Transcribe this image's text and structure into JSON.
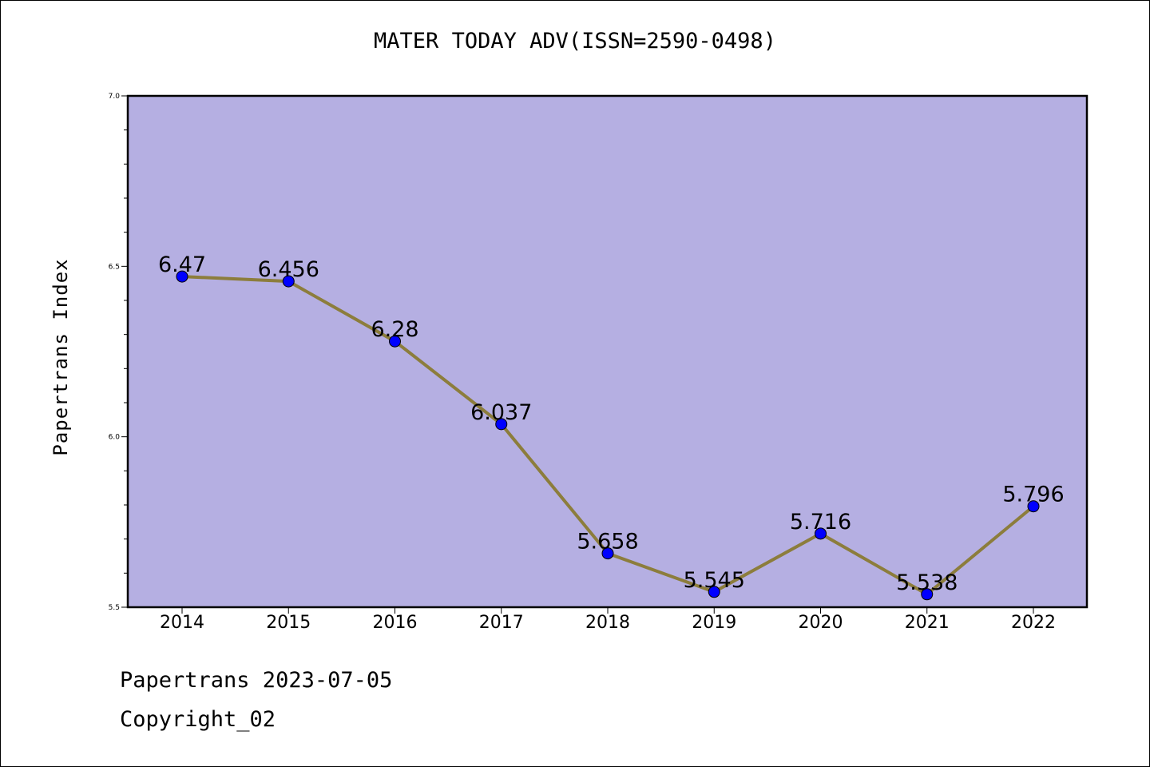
{
  "title": "MATER TODAY ADV(ISSN=2590-0498)",
  "footer": {
    "source": "Papertrans 2023-07-05",
    "copyright": "Copyright_02"
  },
  "colors": {
    "plot_background": "#b5afe2",
    "line": "#8c7d3c",
    "marker": "#0000ff"
  },
  "chart_data": {
    "type": "line",
    "x": [
      "2014",
      "2015",
      "2016",
      "2017",
      "2018",
      "2019",
      "2020",
      "2021",
      "2022"
    ],
    "series": [
      {
        "values": [
          6.47,
          6.456,
          6.28,
          6.037,
          5.658,
          5.545,
          5.716,
          5.538,
          5.796
        ]
      }
    ],
    "data_labels": [
      "6.47",
      "6.456",
      "6.28",
      "6.037",
      "5.658",
      "5.545",
      "5.716",
      "5.538",
      "5.796"
    ],
    "ylabel": "Papertrans Index",
    "xlabel": "",
    "ylim": [
      5.5,
      7.0
    ],
    "yticks": [
      "5.5",
      "6.0",
      "6.5",
      "7.0"
    ],
    "grid": false,
    "legend": "none"
  }
}
